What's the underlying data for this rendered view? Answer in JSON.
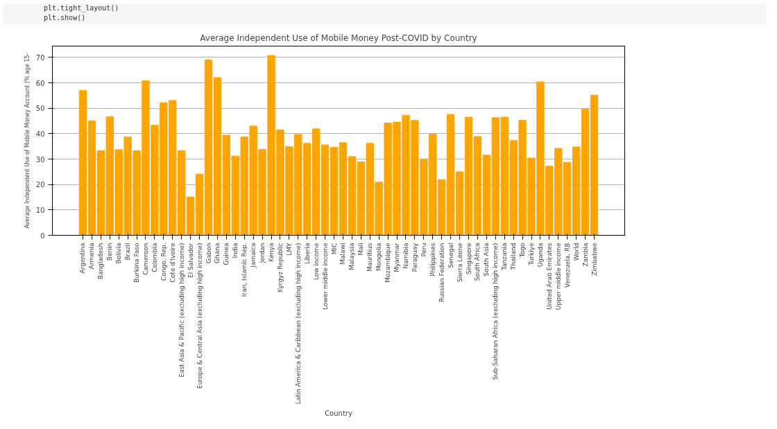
{
  "chart_data": {
    "type": "bar",
    "title": "Average Independent Use of Mobile Money Post-COVID by Country",
    "xlabel": "Country",
    "ylabel": "Average Independent Use of Mobile Money Account (% age 15-",
    "annotations": [
      "plt.tight_layout()",
      "plt.show()"
    ],
    "categories": [
      "Argentina",
      "Armenia",
      "Bangladesh",
      "Benin",
      "Bolivia",
      "Brazil",
      "Burkina Faso",
      "Cameroon",
      "Colombia",
      "Congo, Rep.",
      "Cote d'Ivoire",
      "East Asia & Pacific (excluding high income)",
      "El Salvador",
      "Europe & Central Asia (excluding high income)",
      "Gabon",
      "Ghana",
      "Guinea",
      "India",
      "Iran, Islamic Rep.",
      "Jamaica",
      "Jordan",
      "Kenya",
      "Kyrgyz Republic",
      "LMY",
      "Latin America & Caribbean (excluding high income)",
      "Liberia",
      "Low income",
      "Lower middle income",
      "MIC",
      "Malawi",
      "Malaysia",
      "Mali",
      "Mauritius",
      "Mongolia",
      "Mozambique",
      "Myanmar",
      "Namibia",
      "Paraguay",
      "Peru",
      "Philippines",
      "Russian Federation",
      "Senegal",
      "Sierra Leone",
      "Singapore",
      "South Africa",
      "South Asia",
      "Sub-Saharan Africa (excluding high income)",
      "Tanzania",
      "Thailand",
      "Togo",
      "Turkiye",
      "Uganda",
      "United Arab Emirates",
      "Upper middle income",
      "Venezuela, RB",
      "World",
      "Zambia",
      "Zimbabwe"
    ],
    "values": [
      57,
      45,
      33.3,
      46.6,
      33.7,
      38.7,
      33.3,
      60.8,
      43.3,
      52.2,
      53.1,
      33.3,
      15.1,
      24.1,
      69,
      62.1,
      39.4,
      31.2,
      38.7,
      43,
      33.8,
      70.8,
      41.5,
      34.9,
      39.7,
      36.2,
      41.9,
      35.6,
      34.6,
      36.5,
      31.0,
      28.9,
      36.2,
      20.9,
      44.2,
      44.6,
      47.2,
      45.2,
      29.8,
      39.8,
      21.9,
      47.6,
      25.0,
      46.5,
      38.9,
      31.6,
      46.3,
      46.5,
      37.3,
      45.3,
      30.4,
      60.4,
      27.2,
      34.2,
      28.7,
      34.8,
      49.7,
      55.2
    ],
    "color": "#ffa500",
    "ylim": [
      0,
      74.5
    ],
    "yticks": [
      0,
      10,
      20,
      30,
      40,
      50,
      60,
      70
    ],
    "grid": "y"
  }
}
